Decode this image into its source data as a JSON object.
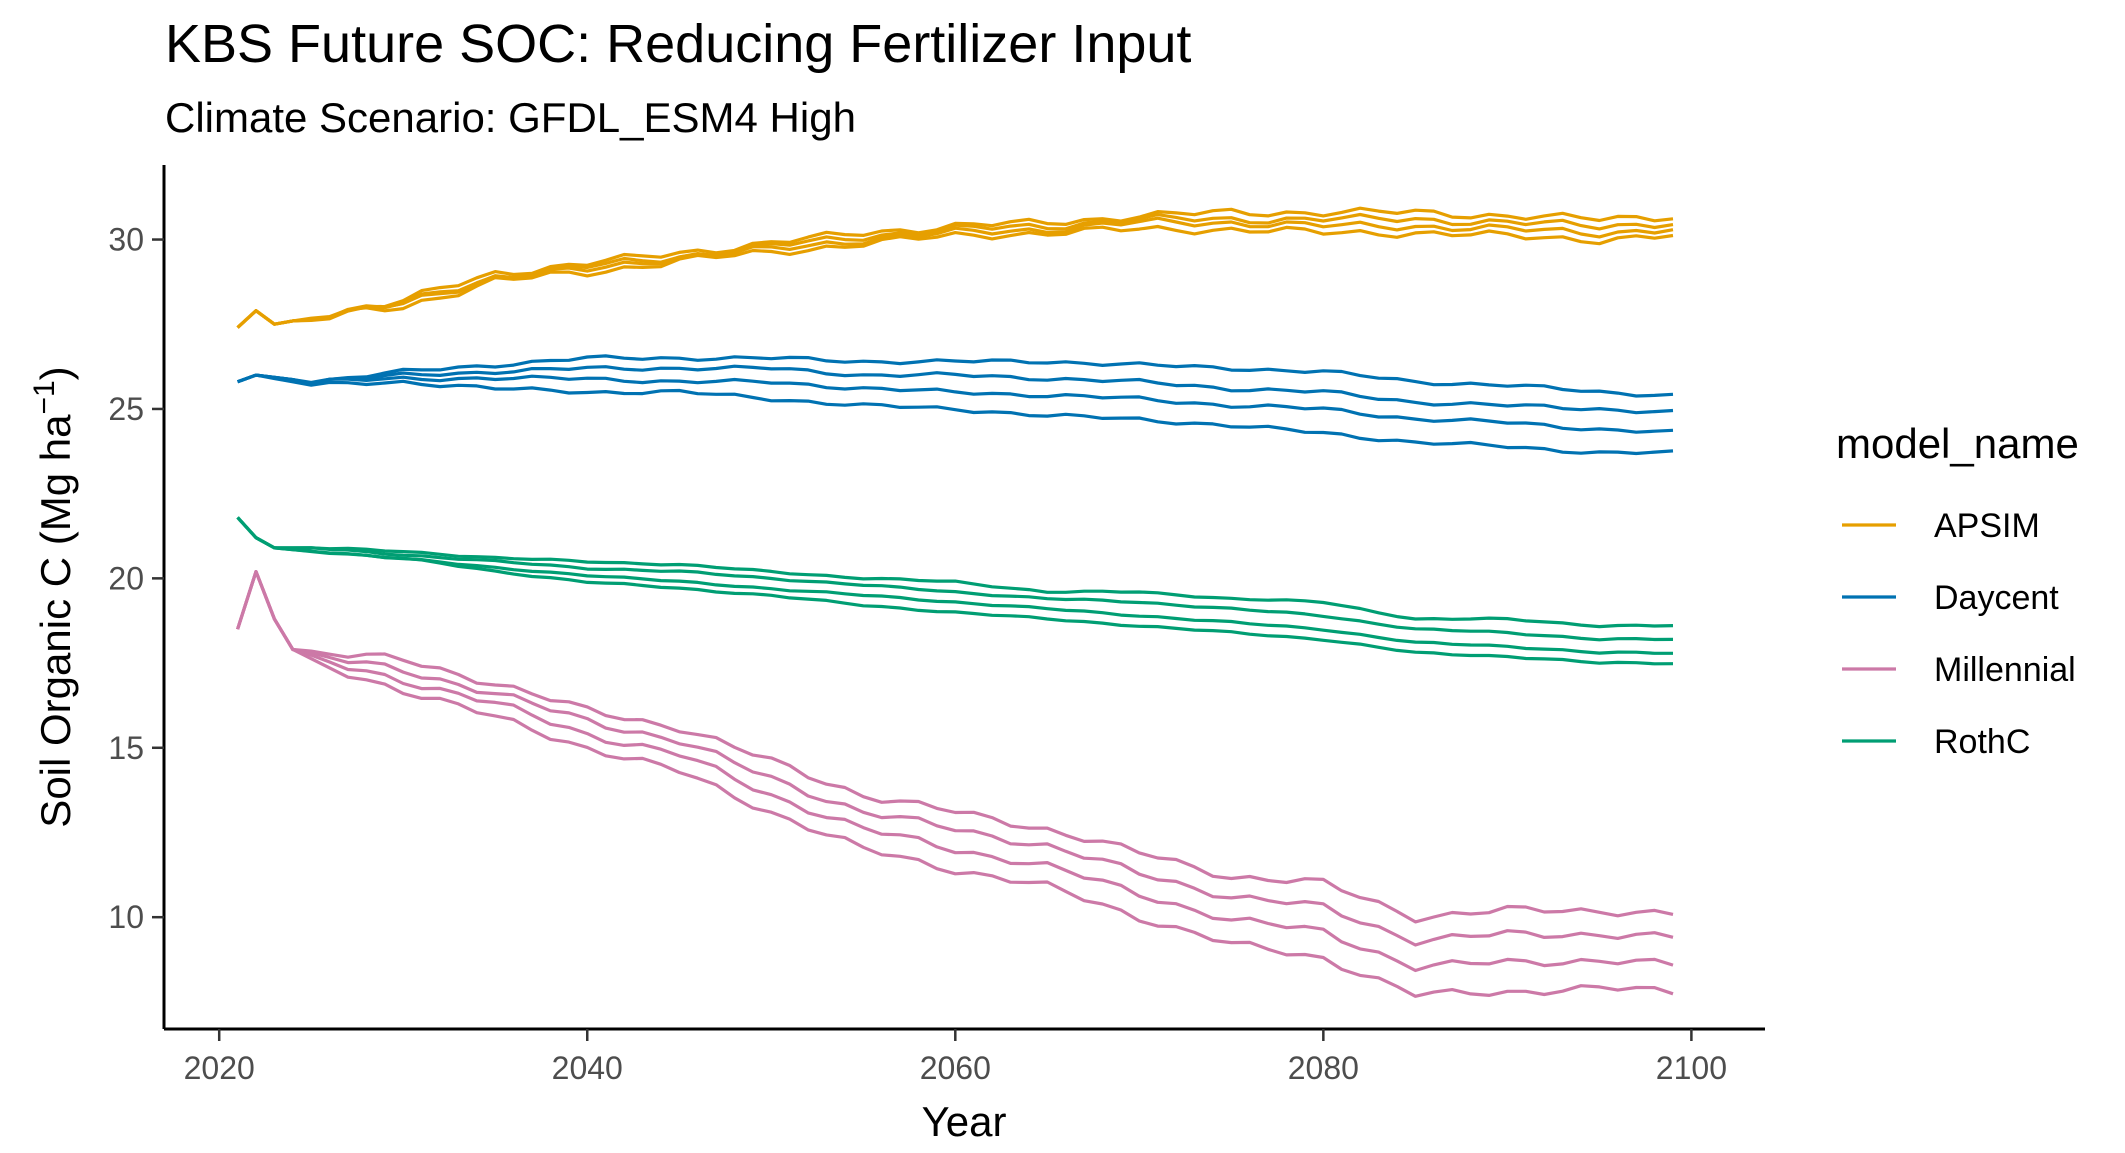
{
  "chart_data": {
    "type": "line",
    "title": "KBS  Future SOC: Reducing Fertilizer Input",
    "subtitle": "Climate Scenario: GFDL_ESM4 High",
    "xlabel": "Year",
    "ylabel_main": "Soil Organic C (Mg ha",
    "ylabel_sup": "−1",
    "ylabel_close": ")",
    "xlim": [
      2017,
      2104
    ],
    "ylim": [
      6.7,
      32.2
    ],
    "xticks": [
      2020,
      2040,
      2060,
      2080,
      2100
    ],
    "xtick_labels": [
      "2020",
      "2040",
      "2060",
      "2080",
      "2100"
    ],
    "yticks": [
      10,
      15,
      20,
      25,
      30
    ],
    "ytick_labels": [
      "10",
      "15",
      "20",
      "25",
      "30"
    ],
    "grid": false,
    "legend": {
      "title": "model_name",
      "position": "right"
    },
    "x_start": 2021,
    "x_end": 2099,
    "models": [
      {
        "name": "APSIM",
        "color": "#E69F00",
        "lines": [
          {
            "x": [
              2021,
              2022,
              2023,
              2025,
              2030,
              2035,
              2040,
              2045,
              2050,
              2055,
              2060,
              2065,
              2070,
              2075,
              2080,
              2085,
              2090,
              2095,
              2099
            ],
            "y": [
              27.4,
              27.9,
              27.5,
              27.7,
              28.2,
              29.0,
              29.3,
              29.6,
              29.9,
              30.2,
              30.4,
              30.5,
              30.7,
              30.8,
              30.8,
              30.8,
              30.7,
              30.6,
              30.7
            ]
          },
          {
            "x": [
              2021,
              2022,
              2023,
              2025,
              2030,
              2035,
              2040,
              2045,
              2050,
              2055,
              2060,
              2065,
              2070,
              2075,
              2080,
              2085,
              2090,
              2095,
              2099
            ],
            "y": [
              27.4,
              27.9,
              27.5,
              27.7,
              28.1,
              28.9,
              29.2,
              29.5,
              29.8,
              30.1,
              30.3,
              30.4,
              30.6,
              30.6,
              30.6,
              30.6,
              30.5,
              30.4,
              30.5
            ]
          },
          {
            "x": [
              2021,
              2022,
              2023,
              2025,
              2030,
              2035,
              2040,
              2045,
              2050,
              2055,
              2060,
              2065,
              2070,
              2075,
              2080,
              2085,
              2090,
              2095,
              2099
            ],
            "y": [
              27.4,
              27.9,
              27.5,
              27.7,
              28.1,
              28.9,
              29.1,
              29.5,
              29.7,
              30.0,
              30.2,
              30.3,
              30.5,
              30.5,
              30.4,
              30.4,
              30.3,
              30.2,
              30.3
            ]
          },
          {
            "x": [
              2021,
              2022,
              2023,
              2025,
              2030,
              2035,
              2040,
              2045,
              2050,
              2055,
              2060,
              2065,
              2070,
              2075,
              2080,
              2085,
              2090,
              2095,
              2099
            ],
            "y": [
              27.4,
              27.9,
              27.5,
              27.7,
              28.0,
              28.8,
              29.0,
              29.4,
              29.6,
              29.9,
              30.1,
              30.2,
              30.3,
              30.3,
              30.2,
              30.2,
              30.1,
              30.0,
              30.1
            ]
          }
        ]
      },
      {
        "name": "Daycent",
        "color": "#0072B2",
        "lines": [
          {
            "x": [
              2021,
              2022,
              2025,
              2030,
              2035,
              2040,
              2045,
              2050,
              2055,
              2060,
              2065,
              2070,
              2075,
              2080,
              2085,
              2090,
              2095,
              2099
            ],
            "y": [
              25.8,
              26.0,
              25.8,
              26.1,
              26.3,
              26.5,
              26.5,
              26.5,
              26.4,
              26.4,
              26.4,
              26.3,
              26.2,
              26.1,
              25.8,
              25.7,
              25.5,
              25.4
            ]
          },
          {
            "x": [
              2021,
              2022,
              2025,
              2030,
              2035,
              2040,
              2045,
              2050,
              2055,
              2060,
              2065,
              2070,
              2075,
              2080,
              2085,
              2090,
              2095,
              2099
            ],
            "y": [
              25.8,
              26.0,
              25.8,
              26.0,
              26.1,
              26.2,
              26.2,
              26.2,
              26.0,
              26.0,
              25.9,
              25.8,
              25.6,
              25.5,
              25.2,
              25.1,
              25.0,
              24.9
            ]
          },
          {
            "x": [
              2021,
              2022,
              2025,
              2030,
              2035,
              2040,
              2045,
              2050,
              2055,
              2060,
              2065,
              2070,
              2075,
              2080,
              2085,
              2090,
              2095,
              2099
            ],
            "y": [
              25.8,
              26.0,
              25.8,
              25.9,
              25.9,
              25.9,
              25.8,
              25.8,
              25.6,
              25.5,
              25.4,
              25.3,
              25.1,
              25.0,
              24.7,
              24.6,
              24.4,
              24.3
            ]
          },
          {
            "x": [
              2021,
              2022,
              2025,
              2030,
              2035,
              2040,
              2045,
              2050,
              2055,
              2060,
              2065,
              2070,
              2075,
              2080,
              2085,
              2090,
              2095,
              2099
            ],
            "y": [
              25.8,
              26.0,
              25.7,
              25.8,
              25.6,
              25.5,
              25.5,
              25.3,
              25.1,
              25.0,
              24.8,
              24.7,
              24.5,
              24.3,
              24.0,
              23.9,
              23.7,
              23.7
            ]
          }
        ]
      },
      {
        "name": "Millennial",
        "color": "#CC79A7",
        "lines": [
          {
            "x": [
              2021,
              2022,
              2023,
              2024,
              2025,
              2030,
              2035,
              2040,
              2045,
              2050,
              2055,
              2060,
              2065,
              2070,
              2075,
              2080,
              2085,
              2090,
              2095,
              2099
            ],
            "y": [
              18.5,
              20.2,
              18.8,
              17.9,
              17.8,
              17.6,
              16.9,
              16.1,
              15.6,
              14.6,
              13.6,
              13.1,
              12.6,
              11.9,
              11.2,
              11.0,
              10.0,
              10.2,
              10.2,
              10.1
            ]
          },
          {
            "x": [
              2021,
              2022,
              2023,
              2024,
              2025,
              2030,
              2035,
              2040,
              2045,
              2050,
              2055,
              2060,
              2065,
              2070,
              2075,
              2080,
              2085,
              2090,
              2095,
              2099
            ],
            "y": [
              18.5,
              20.2,
              18.8,
              17.9,
              17.7,
              17.3,
              16.6,
              15.8,
              15.2,
              14.1,
              13.1,
              12.6,
              12.1,
              11.3,
              10.6,
              10.3,
              9.3,
              9.5,
              9.5,
              9.4
            ]
          },
          {
            "x": [
              2021,
              2022,
              2023,
              2024,
              2025,
              2030,
              2035,
              2040,
              2045,
              2050,
              2055,
              2060,
              2065,
              2070,
              2075,
              2080,
              2085,
              2090,
              2095,
              2099
            ],
            "y": [
              18.5,
              20.2,
              18.8,
              17.9,
              17.6,
              17.0,
              16.3,
              15.4,
              14.8,
              13.6,
              12.6,
              12.0,
              11.5,
              10.7,
              9.9,
              9.6,
              8.5,
              8.7,
              8.7,
              8.6
            ]
          },
          {
            "x": [
              2021,
              2022,
              2023,
              2024,
              2025,
              2030,
              2035,
              2040,
              2045,
              2050,
              2055,
              2060,
              2065,
              2070,
              2075,
              2080,
              2085,
              2090,
              2095,
              2099
            ],
            "y": [
              18.5,
              20.2,
              18.8,
              17.9,
              17.5,
              16.7,
              15.9,
              15.0,
              14.3,
              13.1,
              12.0,
              11.4,
              10.9,
              10.0,
              9.2,
              8.8,
              7.7,
              7.8,
              7.9,
              7.8
            ]
          }
        ]
      },
      {
        "name": "RothC",
        "color": "#009E73",
        "lines": [
          {
            "x": [
              2021,
              2022,
              2023,
              2025,
              2030,
              2035,
              2040,
              2045,
              2050,
              2055,
              2060,
              2065,
              2070,
              2075,
              2080,
              2085,
              2090,
              2095,
              2099
            ],
            "y": [
              21.8,
              21.2,
              20.9,
              20.9,
              20.8,
              20.6,
              20.5,
              20.4,
              20.2,
              20.0,
              19.9,
              19.6,
              19.6,
              19.4,
              19.3,
              18.8,
              18.8,
              18.6,
              18.6
            ]
          },
          {
            "x": [
              2021,
              2022,
              2023,
              2025,
              2030,
              2035,
              2040,
              2045,
              2050,
              2055,
              2060,
              2065,
              2070,
              2075,
              2080,
              2085,
              2090,
              2095,
              2099
            ],
            "y": [
              21.8,
              21.2,
              20.9,
              20.9,
              20.7,
              20.5,
              20.3,
              20.2,
              20.0,
              19.8,
              19.6,
              19.4,
              19.3,
              19.1,
              18.9,
              18.5,
              18.4,
              18.2,
              18.2
            ]
          },
          {
            "x": [
              2021,
              2022,
              2023,
              2025,
              2030,
              2035,
              2040,
              2045,
              2050,
              2055,
              2060,
              2065,
              2070,
              2075,
              2080,
              2085,
              2090,
              2095,
              2099
            ],
            "y": [
              21.8,
              21.2,
              20.9,
              20.8,
              20.6,
              20.3,
              20.1,
              19.9,
              19.7,
              19.5,
              19.3,
              19.1,
              18.9,
              18.7,
              18.5,
              18.1,
              18.0,
              17.8,
              17.8
            ]
          },
          {
            "x": [
              2021,
              2022,
              2023,
              2025,
              2030,
              2035,
              2040,
              2045,
              2050,
              2055,
              2060,
              2065,
              2070,
              2075,
              2080,
              2085,
              2090,
              2095,
              2099
            ],
            "y": [
              21.8,
              21.2,
              20.9,
              20.8,
              20.6,
              20.2,
              19.9,
              19.7,
              19.5,
              19.2,
              19.0,
              18.8,
              18.6,
              18.4,
              18.2,
              17.8,
              17.7,
              17.5,
              17.5
            ]
          }
        ]
      }
    ]
  }
}
